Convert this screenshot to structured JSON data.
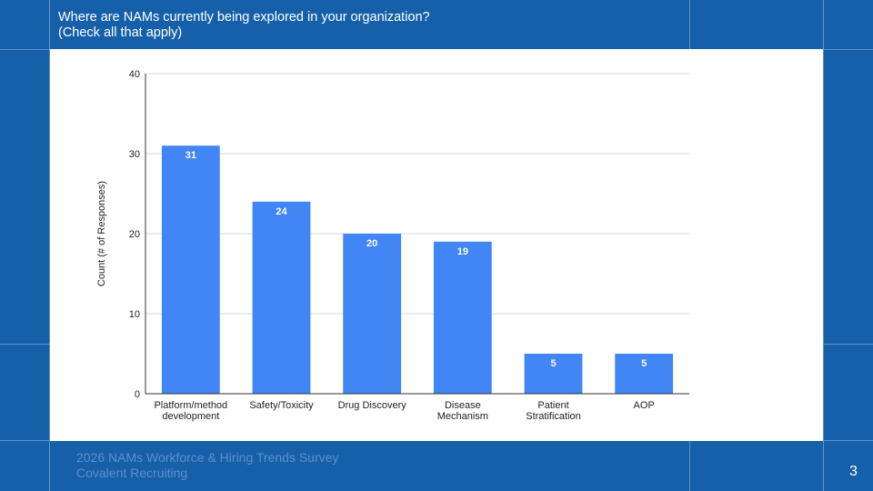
{
  "slide": {
    "title": "Where are NAMs currently being explored in your organization?\n(Check all that apply)",
    "footer_line1": "2026 NAMs Workforce & Hiring Trends Survey",
    "footer_line2": "Covalent Recruiting",
    "page_number": "3"
  },
  "colors": {
    "background": "#1660aa",
    "bar": "#4285f4",
    "panel": "#ffffff"
  },
  "chart_data": {
    "type": "bar",
    "categories": [
      [
        "Platform/method",
        "development"
      ],
      [
        "Safety/Toxicity"
      ],
      [
        "Drug Discovery"
      ],
      [
        "Disease",
        "Mechanism"
      ],
      [
        "Patient",
        "Stratification"
      ],
      [
        "AOP"
      ]
    ],
    "values": [
      31,
      24,
      20,
      19,
      5,
      5
    ],
    "title": "",
    "xlabel": "",
    "ylabel": "Count (# of Responses)",
    "ylim": [
      0,
      40
    ],
    "yticks": [
      0,
      10,
      20,
      30,
      40
    ],
    "grid": true,
    "data_labels": true
  }
}
